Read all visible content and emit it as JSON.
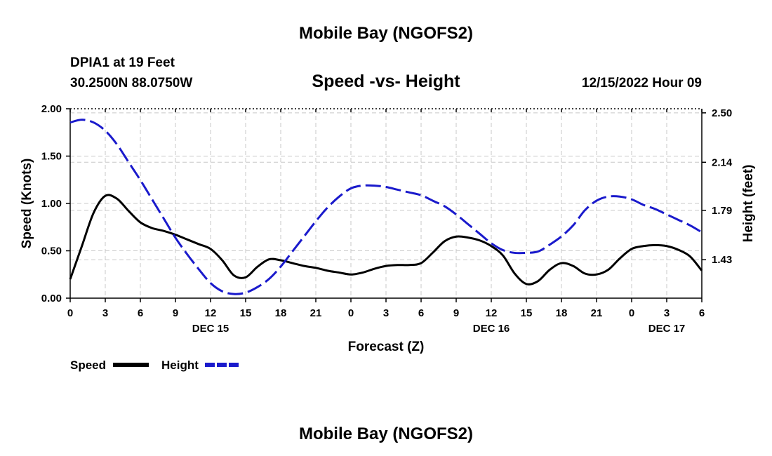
{
  "chart_data": {
    "type": "line",
    "title": "Mobile Bay (NGOFS2)",
    "subtitle": "Speed -vs- Height",
    "station": "DPIA1 at 19 Feet",
    "coordinates": "30.2500N  88.0750W",
    "timestamp": "12/15/2022 Hour 09",
    "footer_title": "Mobile Bay (NGOFS2)",
    "xlabel": "Forecast (Z)",
    "ylabel_left": "Speed (Knots)",
    "ylabel_right": "Height (feet)",
    "x_range_hours": [
      0,
      54
    ],
    "ylim_left": [
      0,
      2.0
    ],
    "ylim_right": [
      1.15,
      2.53
    ],
    "x_tick_labels": [
      "0",
      "3",
      "6",
      "9",
      "12",
      "15",
      "18",
      "21",
      "0",
      "3",
      "6",
      "9",
      "12",
      "15",
      "18",
      "21",
      "0",
      "3",
      "6"
    ],
    "date_labels": [
      {
        "label": "DEC 15",
        "hour": 12
      },
      {
        "label": "DEC 16",
        "hour": 36
      },
      {
        "label": "DEC 17",
        "hour": 51
      }
    ],
    "y_ticks_left": [
      "0.00",
      "0.50",
      "1.00",
      "1.50",
      "2.00"
    ],
    "y_ticks_right": [
      "1.43",
      "1.79",
      "2.14",
      "2.50"
    ],
    "series": [
      {
        "name": "Speed",
        "axis": "left",
        "color": "#000000",
        "style": "solid",
        "x": [
          0,
          1,
          2,
          3,
          4,
          5,
          6,
          7,
          8,
          9,
          10,
          11,
          12,
          13,
          14,
          15,
          16,
          17,
          18,
          19,
          20,
          21,
          22,
          23,
          24,
          25,
          26,
          27,
          28,
          29,
          30,
          31,
          32,
          33,
          34,
          35,
          36,
          37,
          38,
          39,
          40,
          41,
          42,
          43,
          44,
          45,
          46,
          47,
          48,
          49,
          50,
          51,
          52,
          53,
          54
        ],
        "values": [
          0.2,
          0.55,
          0.9,
          1.08,
          1.05,
          0.92,
          0.8,
          0.74,
          0.71,
          0.67,
          0.62,
          0.57,
          0.52,
          0.4,
          0.24,
          0.22,
          0.33,
          0.41,
          0.4,
          0.37,
          0.34,
          0.32,
          0.29,
          0.27,
          0.25,
          0.27,
          0.31,
          0.34,
          0.35,
          0.35,
          0.37,
          0.48,
          0.6,
          0.65,
          0.64,
          0.61,
          0.55,
          0.45,
          0.26,
          0.15,
          0.18,
          0.3,
          0.37,
          0.34,
          0.26,
          0.25,
          0.3,
          0.42,
          0.52,
          0.55,
          0.56,
          0.55,
          0.51,
          0.44,
          0.29
        ]
      },
      {
        "name": "Height",
        "axis": "right",
        "color": "#1a1acc",
        "style": "dashed",
        "x": [
          0,
          1,
          2,
          3,
          4,
          5,
          6,
          7,
          8,
          9,
          10,
          11,
          12,
          13,
          14,
          15,
          16,
          17,
          18,
          19,
          20,
          21,
          22,
          23,
          24,
          25,
          26,
          27,
          28,
          29,
          30,
          31,
          32,
          33,
          34,
          35,
          36,
          37,
          38,
          39,
          40,
          41,
          42,
          43,
          44,
          45,
          46,
          47,
          48,
          49,
          50,
          51,
          52,
          53,
          54
        ],
        "values": [
          2.43,
          2.45,
          2.43,
          2.37,
          2.27,
          2.14,
          2.01,
          1.87,
          1.73,
          1.59,
          1.47,
          1.36,
          1.26,
          1.2,
          1.18,
          1.19,
          1.23,
          1.29,
          1.38,
          1.49,
          1.6,
          1.71,
          1.81,
          1.89,
          1.95,
          1.97,
          1.97,
          1.96,
          1.94,
          1.92,
          1.9,
          1.86,
          1.82,
          1.76,
          1.69,
          1.62,
          1.55,
          1.5,
          1.48,
          1.48,
          1.49,
          1.54,
          1.6,
          1.68,
          1.79,
          1.86,
          1.89,
          1.89,
          1.87,
          1.83,
          1.8,
          1.76,
          1.72,
          1.68,
          1.63
        ]
      }
    ]
  }
}
